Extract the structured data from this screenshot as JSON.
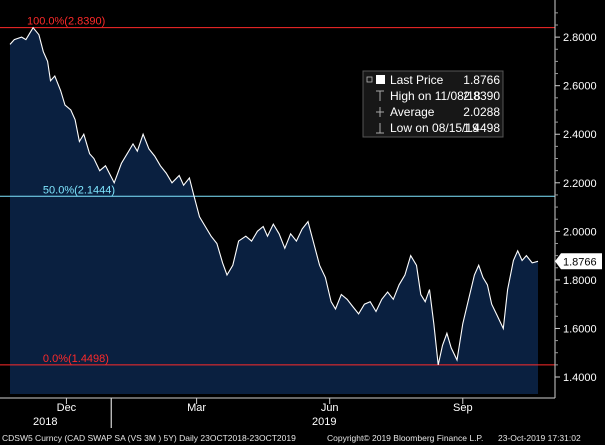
{
  "chart_data": {
    "type": "area",
    "ylim": [
      1.33,
      2.92
    ],
    "yticks": [
      1.4,
      1.6,
      1.8,
      2.0,
      2.2,
      2.4,
      2.6,
      2.8
    ],
    "ytick_labels": [
      "1.4000",
      "1.6000",
      "1.8000",
      "2.0000",
      "2.2000",
      "2.4000",
      "2.6000",
      "2.8000"
    ],
    "x_start": "2018-10-23",
    "x_end": "2019-10-23",
    "month_ticks": [
      {
        "date": "2018-12-01",
        "label": "Dec"
      },
      {
        "date": "2019-03-01",
        "label": "Mar"
      },
      {
        "date": "2019-06-01",
        "label": "Jun"
      },
      {
        "date": "2019-09-01",
        "label": "Sep"
      }
    ],
    "year_ticks": [
      {
        "date": "2019-01-01",
        "year_label": "2018",
        "label_side": "left"
      },
      {
        "date": "2019-01-01",
        "year_label": "2019",
        "label_side": "right"
      }
    ],
    "series": [
      {
        "name": "Last Price",
        "points": [
          [
            "2018-10-23",
            2.77
          ],
          [
            "2018-10-26",
            2.79
          ],
          [
            "2018-10-31",
            2.8
          ],
          [
            "2018-11-03",
            2.79
          ],
          [
            "2018-11-06",
            2.82
          ],
          [
            "2018-11-08",
            2.839
          ],
          [
            "2018-11-12",
            2.81
          ],
          [
            "2018-11-15",
            2.74
          ],
          [
            "2018-11-18",
            2.7
          ],
          [
            "2018-11-20",
            2.62
          ],
          [
            "2018-11-23",
            2.64
          ],
          [
            "2018-11-27",
            2.58
          ],
          [
            "2018-11-30",
            2.52
          ],
          [
            "2018-12-04",
            2.5
          ],
          [
            "2018-12-07",
            2.46
          ],
          [
            "2018-12-10",
            2.37
          ],
          [
            "2018-12-13",
            2.4
          ],
          [
            "2018-12-17",
            2.32
          ],
          [
            "2018-12-20",
            2.3
          ],
          [
            "2018-12-24",
            2.25
          ],
          [
            "2018-12-28",
            2.27
          ],
          [
            "2019-01-03",
            2.2
          ],
          [
            "2019-01-08",
            2.28
          ],
          [
            "2019-01-12",
            2.32
          ],
          [
            "2019-01-16",
            2.36
          ],
          [
            "2019-01-19",
            2.33
          ],
          [
            "2019-01-23",
            2.4
          ],
          [
            "2019-01-27",
            2.34
          ],
          [
            "2019-01-31",
            2.31
          ],
          [
            "2019-02-04",
            2.27
          ],
          [
            "2019-02-08",
            2.24
          ],
          [
            "2019-02-12",
            2.2
          ],
          [
            "2019-02-17",
            2.23
          ],
          [
            "2019-02-20",
            2.19
          ],
          [
            "2019-02-24",
            2.22
          ],
          [
            "2019-02-27",
            2.15
          ],
          [
            "2019-03-03",
            2.06
          ],
          [
            "2019-03-07",
            2.02
          ],
          [
            "2019-03-11",
            1.98
          ],
          [
            "2019-03-15",
            1.95
          ],
          [
            "2019-03-19",
            1.87
          ],
          [
            "2019-03-22",
            1.82
          ],
          [
            "2019-03-26",
            1.86
          ],
          [
            "2019-03-30",
            1.96
          ],
          [
            "2019-04-04",
            1.98
          ],
          [
            "2019-04-08",
            1.96
          ],
          [
            "2019-04-12",
            2.0
          ],
          [
            "2019-04-16",
            2.02
          ],
          [
            "2019-04-19",
            1.98
          ],
          [
            "2019-04-23",
            2.03
          ],
          [
            "2019-04-27",
            1.99
          ],
          [
            "2019-05-01",
            1.93
          ],
          [
            "2019-05-05",
            1.99
          ],
          [
            "2019-05-09",
            1.96
          ],
          [
            "2019-05-13",
            2.01
          ],
          [
            "2019-05-17",
            2.04
          ],
          [
            "2019-05-21",
            1.95
          ],
          [
            "2019-05-25",
            1.86
          ],
          [
            "2019-05-29",
            1.81
          ],
          [
            "2019-06-02",
            1.71
          ],
          [
            "2019-06-05",
            1.68
          ],
          [
            "2019-06-09",
            1.74
          ],
          [
            "2019-06-13",
            1.72
          ],
          [
            "2019-06-17",
            1.69
          ],
          [
            "2019-06-21",
            1.66
          ],
          [
            "2019-06-25",
            1.7
          ],
          [
            "2019-06-29",
            1.71
          ],
          [
            "2019-07-03",
            1.67
          ],
          [
            "2019-07-07",
            1.72
          ],
          [
            "2019-07-11",
            1.75
          ],
          [
            "2019-07-15",
            1.72
          ],
          [
            "2019-07-19",
            1.78
          ],
          [
            "2019-07-23",
            1.82
          ],
          [
            "2019-07-27",
            1.9
          ],
          [
            "2019-07-31",
            1.86
          ],
          [
            "2019-08-03",
            1.74
          ],
          [
            "2019-08-06",
            1.71
          ],
          [
            "2019-08-09",
            1.76
          ],
          [
            "2019-08-12",
            1.62
          ],
          [
            "2019-08-15",
            1.4498
          ],
          [
            "2019-08-18",
            1.53
          ],
          [
            "2019-08-21",
            1.58
          ],
          [
            "2019-08-24",
            1.52
          ],
          [
            "2019-08-28",
            1.47
          ],
          [
            "2019-09-01",
            1.62
          ],
          [
            "2019-09-05",
            1.72
          ],
          [
            "2019-09-09",
            1.82
          ],
          [
            "2019-09-12",
            1.86
          ],
          [
            "2019-09-15",
            1.81
          ],
          [
            "2019-09-18",
            1.78
          ],
          [
            "2019-09-21",
            1.7
          ],
          [
            "2019-09-25",
            1.65
          ],
          [
            "2019-09-29",
            1.6
          ],
          [
            "2019-10-02",
            1.76
          ],
          [
            "2019-10-06",
            1.88
          ],
          [
            "2019-10-09",
            1.92
          ],
          [
            "2019-10-12",
            1.88
          ],
          [
            "2019-10-15",
            1.9
          ],
          [
            "2019-10-19",
            1.87
          ],
          [
            "2019-10-23",
            1.8766
          ]
        ]
      }
    ],
    "fib_levels": [
      {
        "label": "100.0%(2.8390)",
        "value": 2.839,
        "color": "#ff2a2a",
        "label_start": "2018-10-23"
      },
      {
        "label": "50.0%(2.1444)",
        "value": 2.1444,
        "color": "#7fe6ff",
        "label_start": "2018-11-03"
      },
      {
        "label": "0.0%(1.4498)",
        "value": 1.4498,
        "color": "#ff2a2a",
        "label_start": "2018-11-03"
      }
    ],
    "last_value": {
      "value": 1.8766,
      "label": "1.8766"
    },
    "legend": {
      "placement": "top-right",
      "rows": [
        {
          "label": "Last Price",
          "value": "1.8766"
        },
        {
          "label": "High on 11/08/18",
          "value": "2.8390"
        },
        {
          "label": "Average",
          "value": "2.0288"
        },
        {
          "label": "Low on 08/15/19",
          "value": "1.4498"
        }
      ]
    },
    "colors": {
      "background": "#000000",
      "area": "#0a2040",
      "line": "#ffffff"
    }
  },
  "footer": {
    "left": "CDSW5 Curncy (CAD SWAP SA (VS 3M ) 5Y)  Daily 23OCT2018-23OCT2019",
    "middle": "Copyright© 2019 Bloomberg Finance L.P.",
    "right": "23-Oct-2019 17:31:02"
  }
}
